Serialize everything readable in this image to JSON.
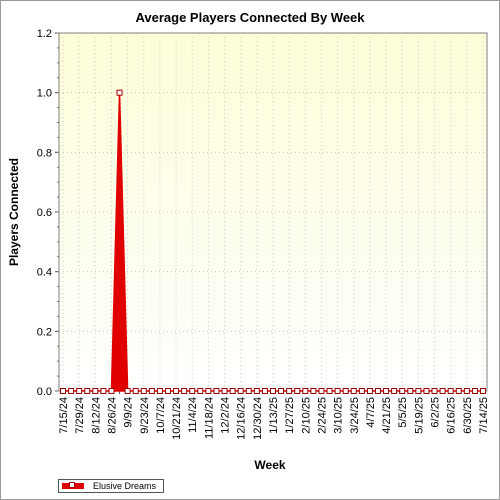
{
  "chart_data": {
    "type": "area",
    "title": "Average Players Connected By Week",
    "xlabel": "Week",
    "ylabel": "Players Connected",
    "ylim": [
      0,
      1.2
    ],
    "yticks": [
      0.0,
      0.2,
      0.4,
      0.6,
      0.8,
      1.0,
      1.2
    ],
    "grid": true,
    "legend_position": "bottom-left",
    "colors": {
      "series": "#e00000",
      "marker_edge": "#a00000",
      "background_top": "#fdfdd8",
      "background_bottom": "#ffffff"
    },
    "x": [
      "7/15/24",
      "7/22/24",
      "7/29/24",
      "8/5/24",
      "8/12/24",
      "8/19/24",
      "8/26/24",
      "9/2/24",
      "9/9/24",
      "9/16/24",
      "9/23/24",
      "9/30/24",
      "10/7/24",
      "10/14/24",
      "10/21/24",
      "10/28/24",
      "11/4/24",
      "11/11/24",
      "11/18/24",
      "11/25/24",
      "12/2/24",
      "12/9/24",
      "12/16/24",
      "12/23/24",
      "12/30/24",
      "1/6/25",
      "1/13/25",
      "1/20/25",
      "1/27/25",
      "2/3/25",
      "2/10/25",
      "2/17/25",
      "2/24/25",
      "3/3/25",
      "3/10/25",
      "3/17/25",
      "3/24/25",
      "3/31/25",
      "4/7/25",
      "4/14/25",
      "4/21/25",
      "4/28/25",
      "5/5/25",
      "5/12/25",
      "5/19/25",
      "5/26/25",
      "6/2/25",
      "6/9/25",
      "6/16/25",
      "6/23/25",
      "6/30/25",
      "7/7/25",
      "7/14/25"
    ],
    "tick_labels": [
      "7/15/24",
      "7/29/24",
      "8/12/24",
      "8/26/24",
      "9/9/24",
      "9/23/24",
      "10/7/24",
      "10/21/24",
      "11/4/24",
      "11/18/24",
      "12/2/24",
      "12/16/24",
      "12/30/24",
      "1/13/25",
      "1/27/25",
      "2/10/25",
      "2/24/25",
      "3/10/25",
      "3/24/25",
      "4/7/25",
      "4/21/25",
      "5/5/25",
      "5/19/25",
      "6/2/25",
      "6/16/25",
      "6/30/25",
      "7/14/25"
    ],
    "series": [
      {
        "name": "Elusive Dreams",
        "values": [
          0,
          0,
          0,
          0,
          0,
          0,
          0,
          1,
          0,
          0,
          0,
          0,
          0,
          0,
          0,
          0,
          0,
          0,
          0,
          0,
          0,
          0,
          0,
          0,
          0,
          0,
          0,
          0,
          0,
          0,
          0,
          0,
          0,
          0,
          0,
          0,
          0,
          0,
          0,
          0,
          0,
          0,
          0,
          0,
          0,
          0,
          0,
          0,
          0,
          0,
          0,
          0,
          0
        ]
      }
    ]
  }
}
